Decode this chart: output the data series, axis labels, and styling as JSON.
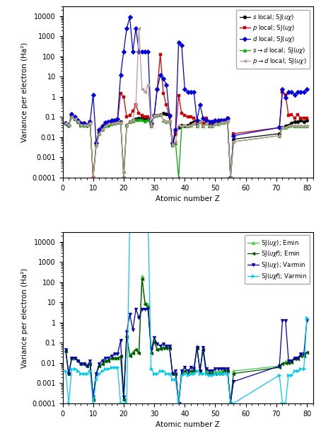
{
  "top": {
    "series": {
      "s_local": {
        "color": "black",
        "marker": "o",
        "Z": [
          1,
          2,
          3,
          4,
          5,
          6,
          7,
          8,
          9,
          10,
          11,
          12,
          13,
          14,
          15,
          16,
          17,
          18,
          19,
          20,
          21,
          22,
          23,
          24,
          25,
          26,
          27,
          28,
          29,
          30,
          31,
          32,
          33,
          34,
          35,
          36,
          37,
          38,
          39,
          40,
          41,
          42,
          43,
          44,
          45,
          46,
          47,
          48,
          49,
          50,
          51,
          52,
          53,
          54,
          55,
          56,
          71,
          72,
          73,
          74,
          75,
          76,
          77,
          78,
          79,
          80
        ],
        "V": [
          0.05,
          0.04,
          0.1,
          0.08,
          0.06,
          0.04,
          0.04,
          0.04,
          0.05,
          0.0001,
          0.004,
          0.015,
          0.025,
          0.035,
          0.04,
          0.045,
          0.05,
          0.055,
          0.06,
          0.0001,
          0.04,
          0.06,
          0.07,
          0.08,
          0.09,
          0.09,
          0.08,
          0.09,
          0.04,
          0.12,
          0.12,
          0.13,
          0.16,
          0.14,
          0.11,
          0.004,
          0.015,
          0.03,
          0.04,
          0.035,
          0.04,
          0.05,
          0.06,
          0.04,
          0.06,
          0.04,
          0.06,
          0.04,
          0.04,
          0.05,
          0.05,
          0.06,
          0.06,
          0.07,
          0.0001,
          0.008,
          0.015,
          0.03,
          0.035,
          0.04,
          0.05,
          0.06,
          0.06,
          0.07,
          0.06,
          0.07
        ]
      },
      "p_local": {
        "color": "#cc0000",
        "marker": "s",
        "Z": [
          1,
          2,
          3,
          4,
          5,
          6,
          7,
          8,
          9,
          10,
          11,
          12,
          13,
          14,
          15,
          16,
          17,
          18,
          19,
          20,
          21,
          22,
          23,
          24,
          25,
          26,
          27,
          28,
          29,
          30,
          31,
          32,
          33,
          34,
          35,
          36,
          37,
          38,
          39,
          40,
          41,
          42,
          43,
          44,
          45,
          46,
          47,
          48,
          49,
          50,
          51,
          52,
          53,
          54,
          55,
          56,
          71,
          72,
          73,
          74,
          75,
          76,
          77,
          78,
          79,
          80
        ],
        "V": [
          0.05,
          0.04,
          0.12,
          0.09,
          0.07,
          0.05,
          0.05,
          0.04,
          0.06,
          0.0001,
          0.005,
          0.018,
          0.03,
          0.05,
          0.055,
          0.06,
          0.07,
          0.07,
          1.5,
          1.0,
          0.1,
          0.12,
          0.2,
          0.4,
          0.15,
          0.12,
          0.1,
          0.1,
          0.04,
          0.12,
          2.5,
          130.0,
          1.5,
          0.4,
          0.1,
          0.005,
          0.018,
          1.2,
          0.15,
          0.12,
          0.1,
          0.1,
          0.09,
          0.06,
          0.06,
          0.05,
          0.09,
          0.05,
          0.06,
          0.06,
          0.06,
          0.07,
          0.07,
          0.09,
          0.0001,
          0.015,
          0.03,
          1.8,
          1.3,
          0.12,
          0.13,
          0.09,
          0.13,
          0.09,
          0.09,
          0.09
        ]
      },
      "d_local": {
        "color": "#0000dd",
        "marker": "D",
        "Z": [
          1,
          2,
          3,
          4,
          5,
          6,
          7,
          8,
          9,
          10,
          11,
          12,
          13,
          14,
          15,
          16,
          17,
          18,
          19,
          20,
          21,
          22,
          23,
          24,
          25,
          26,
          27,
          28,
          29,
          30,
          31,
          32,
          33,
          34,
          35,
          36,
          37,
          38,
          39,
          40,
          41,
          42,
          43,
          44,
          45,
          46,
          47,
          48,
          49,
          50,
          51,
          52,
          53,
          54,
          55,
          56,
          71,
          72,
          73,
          74,
          75,
          76,
          77,
          78,
          79,
          80
        ],
        "V": [
          0.05,
          0.04,
          0.14,
          0.1,
          0.07,
          0.05,
          0.05,
          0.04,
          0.06,
          1.3,
          0.005,
          0.025,
          0.035,
          0.055,
          0.06,
          0.07,
          0.07,
          0.08,
          12.0,
          180.0,
          2500.0,
          9000.0,
          180.0,
          2500.0,
          180.0,
          180.0,
          180.0,
          180.0,
          0.05,
          0.12,
          2.5,
          12.0,
          8.0,
          4.0,
          0.12,
          0.005,
          0.025,
          500.0,
          350.0,
          2.5,
          1.8,
          1.8,
          1.8,
          0.07,
          0.4,
          0.09,
          0.07,
          0.06,
          0.06,
          0.07,
          0.07,
          0.07,
          0.07,
          0.09,
          0.0001,
          0.012,
          0.03,
          2.5,
          0.9,
          1.8,
          1.8,
          1.3,
          1.8,
          1.8,
          1.8,
          2.5
        ]
      },
      "sd_local": {
        "color": "#00aa00",
        "marker": "^",
        "Z": [
          1,
          2,
          3,
          4,
          5,
          6,
          7,
          8,
          9,
          10,
          11,
          12,
          13,
          14,
          15,
          16,
          17,
          18,
          19,
          20,
          21,
          22,
          23,
          24,
          25,
          26,
          27,
          28,
          29,
          30,
          31,
          32,
          33,
          34,
          35,
          36,
          37,
          38,
          39,
          40,
          41,
          42,
          43,
          44,
          45,
          46,
          47,
          48,
          49,
          50,
          51,
          52,
          53,
          54,
          55,
          56,
          71,
          72,
          73,
          74,
          75,
          76,
          77,
          78,
          79,
          80
        ],
        "V": [
          0.05,
          0.04,
          0.1,
          0.08,
          0.06,
          0.04,
          0.04,
          0.04,
          0.05,
          0.0001,
          0.004,
          0.015,
          0.025,
          0.035,
          0.04,
          0.045,
          0.05,
          0.055,
          0.055,
          0.0002,
          0.04,
          0.06,
          0.065,
          0.075,
          0.075,
          0.075,
          0.065,
          0.075,
          0.035,
          0.12,
          0.12,
          0.13,
          0.07,
          0.06,
          0.065,
          0.004,
          0.005,
          0.0001,
          0.035,
          0.04,
          0.035,
          0.04,
          0.05,
          0.035,
          0.06,
          0.035,
          0.05,
          0.035,
          0.035,
          0.045,
          0.045,
          0.055,
          0.055,
          0.065,
          0.0001,
          0.006,
          0.012,
          0.03,
          0.03,
          0.035,
          0.04,
          0.035,
          0.035,
          0.035,
          0.035,
          0.035
        ]
      },
      "pd_local": {
        "color": "#bb9999",
        "marker": "<",
        "Z": [
          1,
          2,
          3,
          4,
          5,
          6,
          7,
          8,
          9,
          10,
          11,
          12,
          13,
          14,
          15,
          16,
          17,
          18,
          19,
          20,
          21,
          22,
          23,
          24,
          25,
          26,
          27,
          28,
          29,
          30,
          31,
          32,
          33,
          34,
          35,
          36,
          37,
          38,
          39,
          40,
          41,
          42,
          43,
          44,
          45,
          46,
          47,
          48,
          49,
          50,
          51,
          52,
          53,
          54,
          55,
          56,
          71,
          72,
          73,
          74,
          75,
          76,
          77,
          78,
          79,
          80
        ],
        "V": [
          0.05,
          0.04,
          0.1,
          0.08,
          0.06,
          0.04,
          0.04,
          0.04,
          0.05,
          0.0001,
          0.004,
          0.015,
          0.025,
          0.035,
          0.045,
          0.045,
          0.05,
          0.055,
          0.055,
          0.0001,
          0.04,
          0.06,
          0.07,
          0.4,
          2500.0,
          2.5,
          1.8,
          4.0,
          0.035,
          0.12,
          0.12,
          0.13,
          0.07,
          0.06,
          0.065,
          0.004,
          0.006,
          0.04,
          0.035,
          0.04,
          0.035,
          0.04,
          0.05,
          0.035,
          0.06,
          0.035,
          0.05,
          0.035,
          0.035,
          0.045,
          0.045,
          0.055,
          0.055,
          0.065,
          0.0001,
          0.006,
          0.012,
          0.03,
          0.03,
          0.035,
          0.04,
          0.035,
          0.035,
          0.035,
          0.035,
          0.035
        ]
      }
    }
  },
  "bottom": {
    "series": {
      "sj_uchi_emin": {
        "color": "#44cc44",
        "marker": "^",
        "Z": [
          1,
          2,
          3,
          4,
          5,
          6,
          7,
          8,
          9,
          10,
          11,
          12,
          13,
          14,
          15,
          16,
          17,
          18,
          19,
          20,
          21,
          22,
          23,
          24,
          25,
          26,
          27,
          28,
          29,
          30,
          31,
          32,
          33,
          34,
          35,
          36,
          37,
          38,
          39,
          40,
          41,
          42,
          43,
          44,
          45,
          46,
          47,
          48,
          49,
          50,
          51,
          52,
          53,
          54,
          55,
          56,
          71,
          72,
          73,
          74,
          75,
          76,
          77,
          78,
          79,
          80
        ],
        "V": [
          0.04,
          0.003,
          0.018,
          0.018,
          0.014,
          0.009,
          0.009,
          0.007,
          0.009,
          0.0002,
          0.003,
          0.007,
          0.009,
          0.013,
          0.014,
          0.018,
          0.018,
          0.018,
          0.022,
          0.0002,
          0.25,
          0.025,
          0.035,
          0.05,
          0.035,
          200.0,
          10.0,
          8.0,
          0.035,
          0.13,
          0.05,
          0.055,
          0.065,
          0.065,
          0.065,
          0.003,
          0.003,
          0.0001,
          0.003,
          0.004,
          0.003,
          0.004,
          0.004,
          0.07,
          0.004,
          0.05,
          0.004,
          0.004,
          0.004,
          0.004,
          0.004,
          0.004,
          0.005,
          0.005,
          0.0001,
          0.004,
          0.007,
          0.01,
          0.012,
          0.012,
          0.013,
          0.018,
          0.018,
          0.025,
          0.025,
          0.035
        ]
      },
      "sj_uchif_emin": {
        "color": "#005500",
        "marker": "<",
        "Z": [
          1,
          2,
          3,
          4,
          5,
          6,
          7,
          8,
          9,
          10,
          11,
          12,
          13,
          14,
          15,
          16,
          17,
          18,
          19,
          20,
          21,
          22,
          23,
          24,
          25,
          26,
          27,
          28,
          29,
          30,
          31,
          32,
          33,
          34,
          35,
          36,
          37,
          38,
          39,
          40,
          41,
          42,
          43,
          44,
          45,
          46,
          47,
          48,
          49,
          50,
          51,
          52,
          53,
          54,
          55,
          56,
          71,
          72,
          73,
          74,
          75,
          76,
          77,
          78,
          79,
          80
        ],
        "V": [
          0.038,
          0.003,
          0.017,
          0.017,
          0.013,
          0.009,
          0.009,
          0.007,
          0.009,
          0.00015,
          0.003,
          0.007,
          0.009,
          0.013,
          0.013,
          0.017,
          0.017,
          0.017,
          0.022,
          0.00015,
          0.2,
          0.022,
          0.03,
          0.045,
          0.03,
          150.0,
          8.0,
          6.0,
          0.03,
          0.11,
          0.045,
          0.05,
          0.055,
          0.055,
          0.055,
          0.003,
          0.003,
          0.0001,
          0.003,
          0.004,
          0.003,
          0.004,
          0.004,
          0.055,
          0.004,
          0.045,
          0.003,
          0.003,
          0.003,
          0.003,
          0.003,
          0.003,
          0.004,
          0.004,
          0.0001,
          0.003,
          0.006,
          0.009,
          0.01,
          0.01,
          0.011,
          0.016,
          0.016,
          0.022,
          0.022,
          0.032
        ]
      },
      "sj_uchi_varmin": {
        "color": "#0000aa",
        "marker": "v",
        "Z": [
          1,
          2,
          3,
          4,
          5,
          6,
          7,
          8,
          9,
          10,
          11,
          12,
          13,
          14,
          15,
          16,
          17,
          18,
          19,
          20,
          21,
          22,
          23,
          24,
          25,
          26,
          27,
          28,
          29,
          30,
          31,
          32,
          33,
          34,
          35,
          36,
          37,
          38,
          39,
          40,
          41,
          42,
          43,
          44,
          45,
          46,
          47,
          48,
          49,
          50,
          51,
          52,
          53,
          54,
          55,
          56,
          71,
          72,
          73,
          74,
          75,
          76,
          77,
          78,
          79,
          80
        ],
        "V": [
          0.045,
          0.003,
          0.018,
          0.018,
          0.013,
          0.009,
          0.009,
          0.007,
          0.013,
          0.0002,
          0.003,
          0.009,
          0.013,
          0.018,
          0.018,
          0.022,
          0.027,
          0.027,
          0.13,
          0.0002,
          0.35,
          2.5,
          0.45,
          4.5,
          1.8,
          4.5,
          4.5,
          4.5,
          0.045,
          0.18,
          0.09,
          0.07,
          0.09,
          0.07,
          0.07,
          0.003,
          0.004,
          0.0001,
          0.004,
          0.006,
          0.004,
          0.006,
          0.005,
          0.06,
          0.004,
          0.06,
          0.005,
          0.004,
          0.004,
          0.005,
          0.005,
          0.005,
          0.005,
          0.005,
          0.0001,
          0.0012,
          0.007,
          1.3,
          1.3,
          0.013,
          0.013,
          0.018,
          0.018,
          0.027,
          0.027,
          1.3
        ]
      },
      "sj_uchif_varmin": {
        "color": "#00ccee",
        "marker": ">",
        "Z": [
          1,
          2,
          3,
          4,
          5,
          6,
          7,
          8,
          9,
          10,
          11,
          12,
          13,
          14,
          15,
          16,
          17,
          18,
          19,
          20,
          21,
          22,
          23,
          24,
          25,
          26,
          27,
          28,
          29,
          30,
          31,
          32,
          33,
          34,
          35,
          36,
          37,
          38,
          39,
          40,
          41,
          42,
          43,
          44,
          45,
          46,
          47,
          48,
          49,
          50,
          51,
          52,
          53,
          54,
          55,
          56,
          71,
          72,
          73,
          74,
          75,
          76,
          77,
          78,
          79,
          80
        ],
        "V": [
          0.004,
          0.0001,
          0.005,
          0.005,
          0.004,
          0.003,
          0.003,
          0.003,
          0.004,
          0.0001,
          0.0015,
          0.003,
          0.004,
          0.005,
          0.005,
          0.006,
          0.006,
          0.006,
          0.0001,
          0.0001,
          0.0001,
          99999.0,
          99999.0,
          99999.0,
          99999.0,
          99999.0,
          99999.0,
          99999.0,
          0.005,
          0.003,
          0.003,
          0.004,
          0.004,
          0.003,
          0.003,
          0.0015,
          0.0015,
          0.0001,
          0.0025,
          0.003,
          0.0025,
          0.003,
          0.003,
          0.004,
          0.003,
          0.003,
          0.003,
          0.0025,
          0.0025,
          0.003,
          0.003,
          0.003,
          0.003,
          0.003,
          0.0001,
          0.0001,
          0.0025,
          0.0001,
          0.0001,
          0.0025,
          0.0025,
          0.004,
          0.004,
          0.005,
          0.005,
          1.8
        ]
      }
    }
  },
  "ylabel": "Variance per electron (Ha²)",
  "xlabel": "Atomic number Z",
  "ylim": [
    0.0001,
    30000
  ],
  "xlim": [
    0,
    82
  ],
  "yticks": [
    0.0001,
    0.001,
    0.01,
    0.1,
    1,
    10,
    100,
    1000,
    10000
  ],
  "yticklabels": [
    "0.0001",
    "0.001",
    "0.01",
    "0.1",
    "1",
    "10",
    "100",
    "1000",
    "10000"
  ]
}
